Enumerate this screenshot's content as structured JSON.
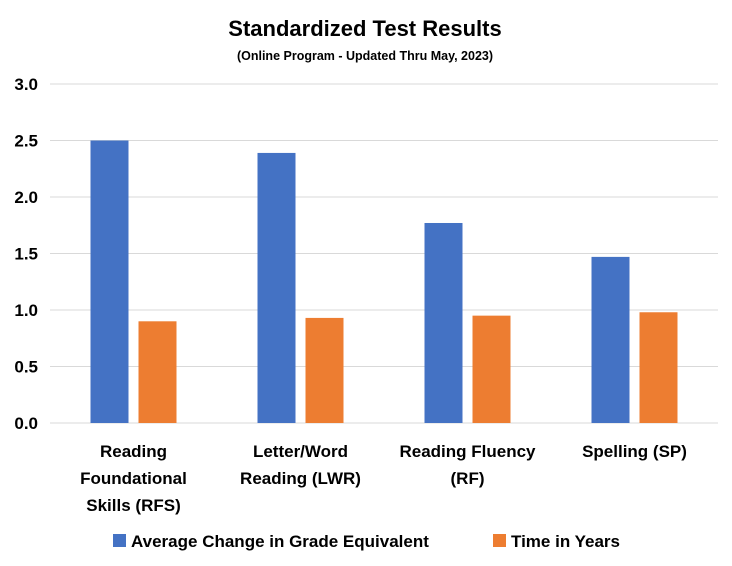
{
  "chart_data": {
    "type": "bar",
    "title": "Standardized Test Results",
    "subtitle": "(Online Program - Updated Thru May, 2023)",
    "categories": [
      [
        "Reading",
        "Foundational",
        "Skills (RFS)"
      ],
      [
        "Letter/Word",
        "Reading (LWR)"
      ],
      [
        "Reading Fluency",
        "(RF)"
      ],
      [
        "Spelling (SP)"
      ]
    ],
    "series": [
      {
        "name": "Average Change in Grade Equivalent",
        "color": "#4472c4",
        "values": [
          2.5,
          2.39,
          1.77,
          1.47
        ]
      },
      {
        "name": "Time in Years",
        "color": "#ed7d31",
        "values": [
          0.9,
          0.93,
          0.95,
          0.98
        ]
      }
    ],
    "ylim": [
      0,
      3.0
    ],
    "yticks": [
      "0.0",
      "0.5",
      "1.0",
      "1.5",
      "2.0",
      "2.5",
      "3.0"
    ],
    "grid": true,
    "legend_position": "bottom"
  }
}
